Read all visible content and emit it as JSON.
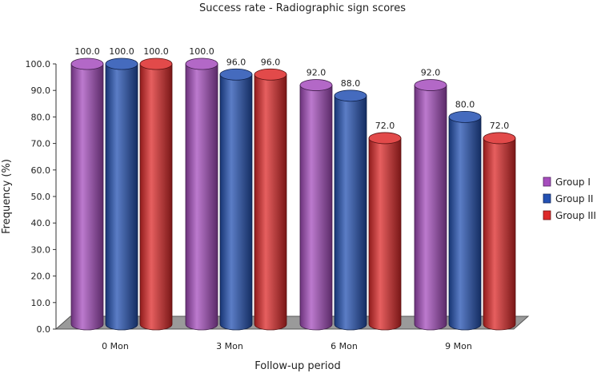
{
  "chart_data": {
    "type": "bar",
    "title": "Success rate - Radiographic sign scores",
    "xlabel": "Follow-up period",
    "ylabel": "Frequency (%)",
    "ylim": [
      0,
      100
    ],
    "yticks": [
      "0.0",
      "10.0",
      "20.0",
      "30.0",
      "40.0",
      "50.0",
      "60.0",
      "70.0",
      "80.0",
      "90.0",
      "100.0"
    ],
    "categories": [
      "0 Mon",
      "3 Mon",
      "6 Mon",
      "9 Mon"
    ],
    "series": [
      {
        "name": "Group I",
        "color": "#a64dbd",
        "values": [
          100.0,
          100.0,
          92.0,
          92.0
        ],
        "labels": [
          "100.0",
          "100.0",
          "92.0",
          "92.0"
        ]
      },
      {
        "name": "Group II",
        "color": "#2451b3",
        "values": [
          100.0,
          96.0,
          88.0,
          80.0
        ],
        "labels": [
          "100.0",
          "96.0",
          "88.0",
          "80.0"
        ]
      },
      {
        "name": "Group III",
        "color": "#dd2a2a",
        "values": [
          100.0,
          96.0,
          72.0,
          72.0
        ],
        "labels": [
          "100.0",
          "96.0",
          "72.0",
          "72.0"
        ]
      }
    ],
    "legend_position": "right",
    "grid": false
  }
}
